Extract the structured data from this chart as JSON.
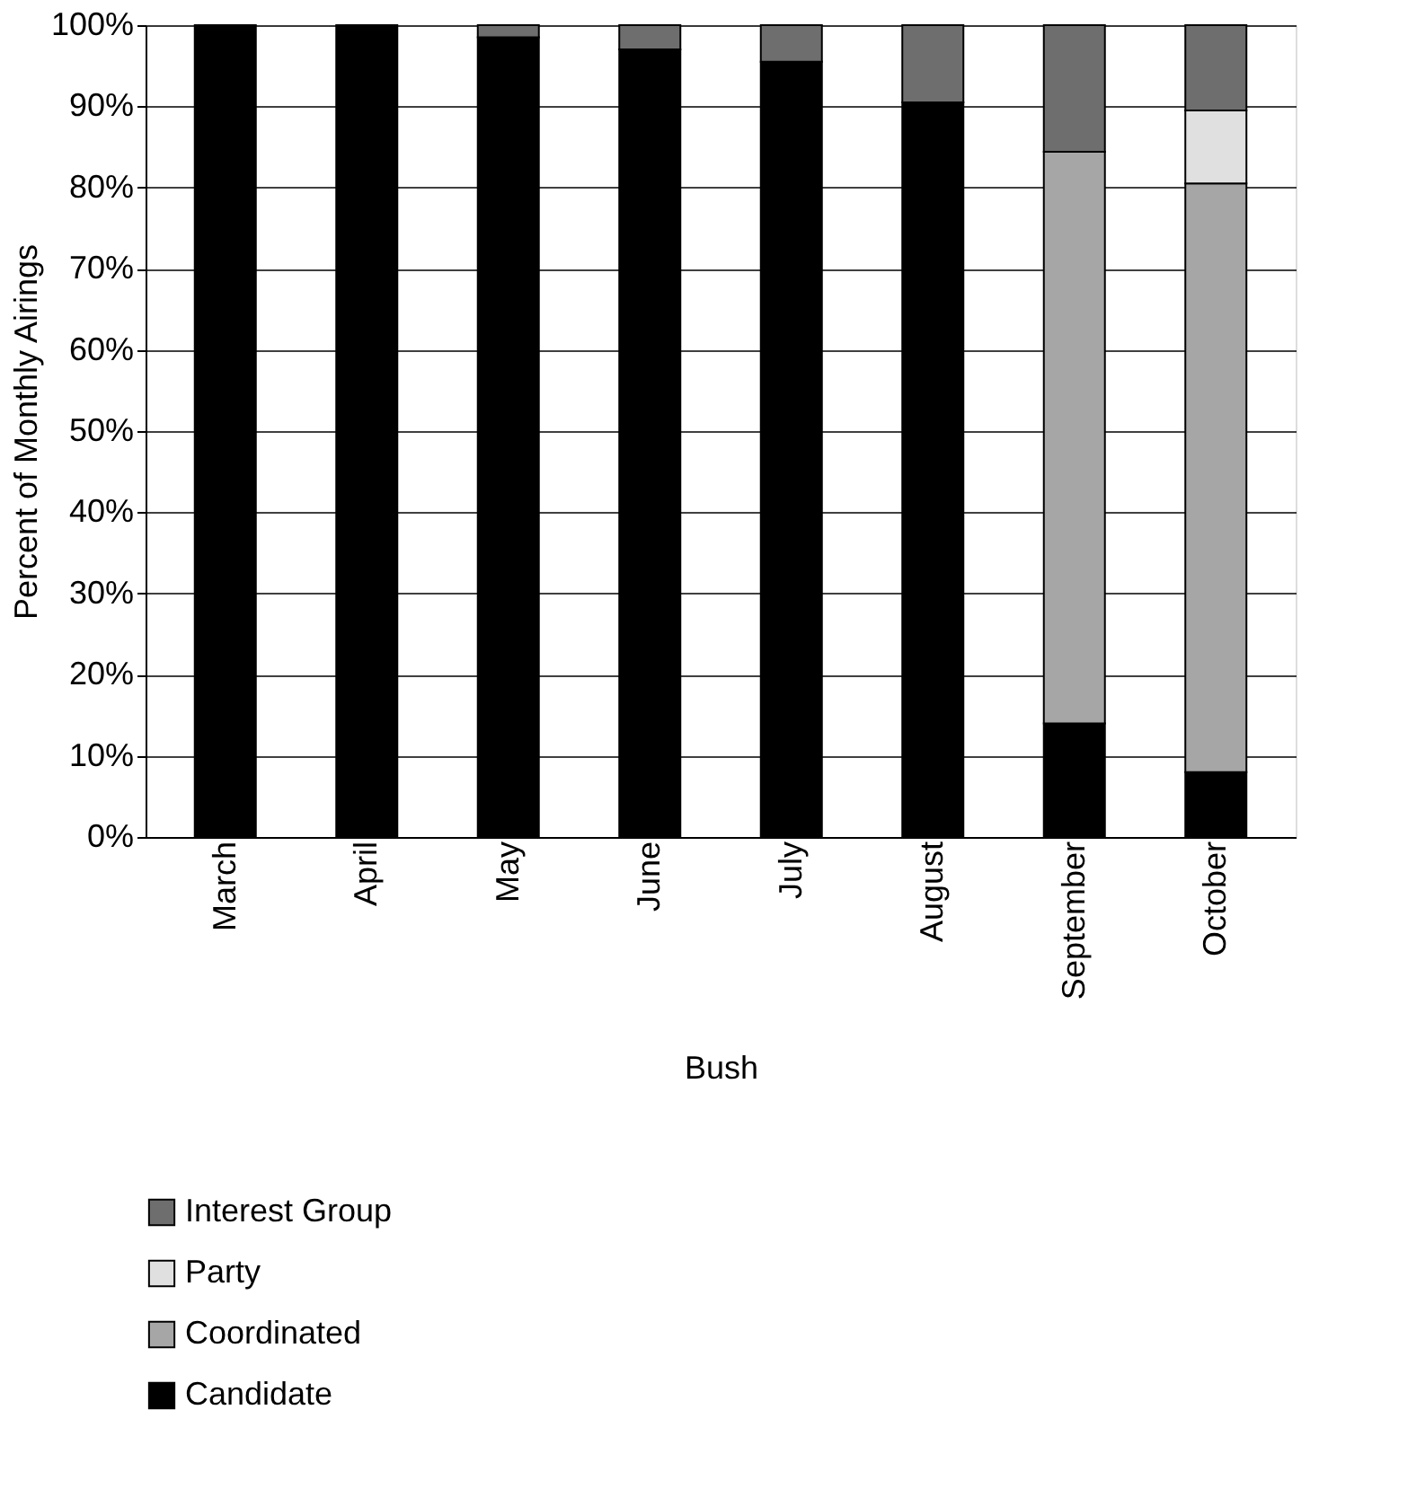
{
  "chart_data": {
    "type": "bar",
    "stacked": true,
    "xlabel": "Bush",
    "ylabel": "Percent of Monthly Airings",
    "categories": [
      "March",
      "April",
      "May",
      "June",
      "July",
      "August",
      "September",
      "October"
    ],
    "series": [
      {
        "name": "Candidate",
        "color": "#000000",
        "values": [
          100,
          100,
          98.5,
          97,
          95.5,
          90.5,
          14,
          8
        ]
      },
      {
        "name": "Coordinated",
        "color": "#a6a6a6",
        "values": [
          null,
          null,
          null,
          null,
          null,
          null,
          70.4,
          72.5
        ]
      },
      {
        "name": "Party",
        "color": "#e0e0e0",
        "values": [
          null,
          null,
          null,
          null,
          null,
          null,
          null,
          9
        ]
      },
      {
        "name": "Interest Group",
        "color": "#6e6e6e",
        "values": [
          null,
          null,
          1.5,
          3,
          4.5,
          9.5,
          15.6,
          10.5
        ]
      }
    ],
    "ylim": [
      0,
      100
    ],
    "yticks": [
      {
        "value": 0,
        "label": "0%"
      },
      {
        "value": 10,
        "label": "10%"
      },
      {
        "value": 20,
        "label": "20%"
      },
      {
        "value": 30,
        "label": "30%"
      },
      {
        "value": 40,
        "label": "40%"
      },
      {
        "value": 50,
        "label": "50%"
      },
      {
        "value": 60,
        "label": "60%"
      },
      {
        "value": 70,
        "label": "70%"
      },
      {
        "value": 80,
        "label": "80%"
      },
      {
        "value": 90,
        "label": "90%"
      },
      {
        "value": 100,
        "label": "100%"
      }
    ],
    "grid": "y",
    "legend": "bottom left"
  }
}
